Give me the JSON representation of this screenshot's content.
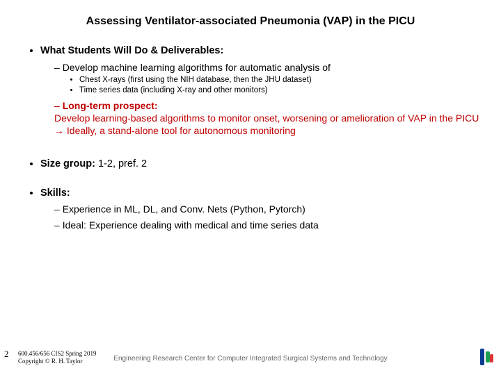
{
  "title": "Assessing Ventilator-associated Pneumonia (VAP) in the PICU",
  "s1": {
    "lead": "What Students Will Do & Deliverables:",
    "sub1": "Develop machine learning algorithms for automatic analysis of",
    "sub1a": "Chest X-rays (first using the NIH database, then the JHU dataset)",
    "sub1b": "Time series data (including X-ray and other monitors)",
    "sub2_head": "Long-term prospect",
    "sub2_l1": "Develop learning-based algorithms to monitor onset, worsening or amelioration of VAP in the PICU",
    "sub2_l2": "→ Ideally, a stand-alone tool for autonomous monitoring"
  },
  "s2": {
    "lead": "Size group:",
    "rest": " 1-2, pref. 2"
  },
  "s3": {
    "lead": "Skills:",
    "sub1": "Experience in ML, DL, and Conv. Nets (Python, Pytorch)",
    "sub2": "Ideal: Experience dealing with medical and time series data"
  },
  "footer": {
    "page": "2",
    "course_l1": "600.456/656 CIS2 Spring 2019",
    "course_l2": "Copyright © R. H. Taylor",
    "center": "Engineering Research Center for Computer Integrated Surgical Systems and Technology"
  },
  "colors": {
    "ltp": "#c00000"
  }
}
